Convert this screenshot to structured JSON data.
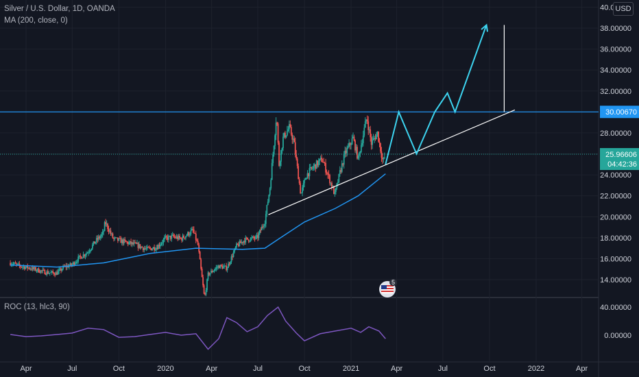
{
  "header": {
    "symbol_line": "Silver / U.S. Dollar, 1D, OANDA",
    "ma_line": "MA (200, close, 0)",
    "currency_button": "USD"
  },
  "indicator": {
    "label": "ROC (13, hlc3, 90)"
  },
  "event_badge": {
    "count": "5",
    "icon": "us-flag-icon"
  },
  "colors": {
    "background": "#131722",
    "up_candle": "#26a69a",
    "down_candle": "#ef5350",
    "ma_line": "#2196f3",
    "resistance_line": "#2196f3",
    "projection": "#3dd4f0",
    "trendline": "#ffffff",
    "roc_line": "#7e57c2",
    "last_price_tag": "#26a69a"
  },
  "chart_data": [
    {
      "type": "line",
      "title": "Silver / U.S. Dollar, 1D, OANDA",
      "price_axis": {
        "ylim": [
          12.7,
          40.0
        ],
        "tick_labels": [
          "40.00000",
          "38.00000",
          "36.00000",
          "34.00000",
          "32.00000",
          "30.00000",
          "28.00000",
          "26.00000",
          "24.00000",
          "22.00000",
          "20.00000",
          "18.00000",
          "16.00000",
          "14.00000"
        ],
        "ticks": [
          40,
          38,
          36,
          34,
          32,
          30,
          28,
          26,
          24,
          22,
          20,
          18,
          16,
          14
        ]
      },
      "x_axis": {
        "tick_labels": [
          "Apr",
          "Jul",
          "Oct",
          "2020",
          "Apr",
          "Jul",
          "Oct",
          "2021",
          "Apr",
          "Jul",
          "Oct",
          "2022",
          "Apr"
        ],
        "tick_dates": [
          "2019-04-01",
          "2019-07-01",
          "2019-10-01",
          "2020-01-01",
          "2020-04-01",
          "2020-07-01",
          "2020-10-01",
          "2021-01-01",
          "2021-04-01",
          "2021-07-01",
          "2021-10-01",
          "2022-01-01",
          "2022-04-01"
        ]
      },
      "price_path": [
        [
          "2019-03-01",
          15.6
        ],
        [
          "2019-03-20",
          15.3
        ],
        [
          "2019-04-10",
          15.1
        ],
        [
          "2019-05-10",
          14.7
        ],
        [
          "2019-05-31",
          14.6
        ],
        [
          "2019-06-15",
          15.2
        ],
        [
          "2019-06-30",
          15.4
        ],
        [
          "2019-07-15",
          16.1
        ],
        [
          "2019-07-31",
          16.6
        ],
        [
          "2019-08-15",
          17.6
        ],
        [
          "2019-08-31",
          18.4
        ],
        [
          "2019-09-04",
          19.5
        ],
        [
          "2019-09-20",
          17.9
        ],
        [
          "2019-10-05",
          17.7
        ],
        [
          "2019-10-20",
          17.5
        ],
        [
          "2019-11-05",
          17.3
        ],
        [
          "2019-11-25",
          16.9
        ],
        [
          "2019-12-15",
          17.1
        ],
        [
          "2019-12-31",
          17.9
        ],
        [
          "2020-01-15",
          18.1
        ],
        [
          "2020-02-01",
          17.9
        ],
        [
          "2020-02-24",
          18.7
        ],
        [
          "2020-03-05",
          17.3
        ],
        [
          "2020-03-18",
          12.2
        ],
        [
          "2020-03-25",
          14.5
        ],
        [
          "2020-04-15",
          15.3
        ],
        [
          "2020-05-01",
          15.1
        ],
        [
          "2020-05-20",
          17.2
        ],
        [
          "2020-06-05",
          17.8
        ],
        [
          "2020-06-30",
          18.0
        ],
        [
          "2020-07-15",
          19.6
        ],
        [
          "2020-07-25",
          22.8
        ],
        [
          "2020-08-01",
          26.5
        ],
        [
          "2020-08-07",
          29.8
        ],
        [
          "2020-08-12",
          25.0
        ],
        [
          "2020-08-20",
          27.5
        ],
        [
          "2020-09-01",
          28.5
        ],
        [
          "2020-09-10",
          27.2
        ],
        [
          "2020-09-24",
          22.1
        ],
        [
          "2020-10-05",
          24.0
        ],
        [
          "2020-10-20",
          24.8
        ],
        [
          "2020-11-05",
          25.5
        ],
        [
          "2020-11-20",
          23.5
        ],
        [
          "2020-11-30",
          22.1
        ],
        [
          "2020-12-10",
          24.2
        ],
        [
          "2020-12-20",
          26.0
        ],
        [
          "2021-01-05",
          27.5
        ],
        [
          "2021-01-15",
          25.5
        ],
        [
          "2021-02-01",
          29.5
        ],
        [
          "2021-02-10",
          27.0
        ],
        [
          "2021-02-22",
          28.0
        ],
        [
          "2021-03-05",
          25.2
        ],
        [
          "2021-03-10",
          25.97
        ]
      ],
      "moving_average": [
        [
          "2019-03-01",
          15.4
        ],
        [
          "2019-06-01",
          15.2
        ],
        [
          "2019-09-01",
          15.6
        ],
        [
          "2019-12-01",
          16.5
        ],
        [
          "2020-03-01",
          17.0
        ],
        [
          "2020-06-01",
          16.9
        ],
        [
          "2020-07-15",
          17.0
        ],
        [
          "2020-08-15",
          18.0
        ],
        [
          "2020-10-01",
          19.5
        ],
        [
          "2020-12-01",
          20.8
        ],
        [
          "2021-01-15",
          22.0
        ],
        [
          "2021-03-10",
          24.1
        ]
      ],
      "annotations": {
        "resistance_level": 30.0067,
        "current_price": 25.96606,
        "countdown": "04:42:36",
        "price_tags": [
          "30.00670",
          "25.96606"
        ],
        "trendline": [
          [
            "2020-07-22",
            20.2
          ],
          [
            "2021-11-20",
            30.2
          ]
        ],
        "projection_path": [
          [
            "2021-03-10",
            25.0
          ],
          [
            "2021-04-05",
            30.0
          ],
          [
            "2021-05-10",
            26.0
          ],
          [
            "2021-06-15",
            30.0
          ],
          [
            "2021-07-10",
            31.8
          ],
          [
            "2021-07-25",
            30.0
          ],
          [
            "2021-09-25",
            38.3
          ]
        ],
        "vertical_marker": {
          "date": "2021-10-30",
          "from": 30.0,
          "to": 38.3
        }
      }
    },
    {
      "type": "line",
      "title": "ROC (13, hlc3, 90)",
      "y_axis": {
        "tick_labels": [
          "40.00000",
          "0.00000"
        ],
        "ticks": [
          40,
          0
        ]
      },
      "values": [
        [
          "2019-03-01",
          1
        ],
        [
          "2019-04-01",
          -2
        ],
        [
          "2019-05-01",
          -1
        ],
        [
          "2019-06-01",
          1
        ],
        [
          "2019-07-01",
          3
        ],
        [
          "2019-08-01",
          10
        ],
        [
          "2019-09-01",
          8
        ],
        [
          "2019-10-01",
          -3
        ],
        [
          "2019-11-01",
          -2
        ],
        [
          "2019-12-01",
          1
        ],
        [
          "2020-01-01",
          4
        ],
        [
          "2020-02-01",
          0
        ],
        [
          "2020-03-01",
          2
        ],
        [
          "2020-03-25",
          -20
        ],
        [
          "2020-04-15",
          -5
        ],
        [
          "2020-05-01",
          25
        ],
        [
          "2020-05-20",
          18
        ],
        [
          "2020-06-10",
          5
        ],
        [
          "2020-07-01",
          12
        ],
        [
          "2020-07-20",
          28
        ],
        [
          "2020-08-10",
          40
        ],
        [
          "2020-08-25",
          20
        ],
        [
          "2020-09-15",
          3
        ],
        [
          "2020-10-01",
          -8
        ],
        [
          "2020-11-01",
          2
        ],
        [
          "2020-12-01",
          6
        ],
        [
          "2021-01-01",
          10
        ],
        [
          "2021-01-20",
          4
        ],
        [
          "2021-02-05",
          12
        ],
        [
          "2021-02-25",
          6
        ],
        [
          "2021-03-10",
          -5
        ]
      ]
    }
  ]
}
